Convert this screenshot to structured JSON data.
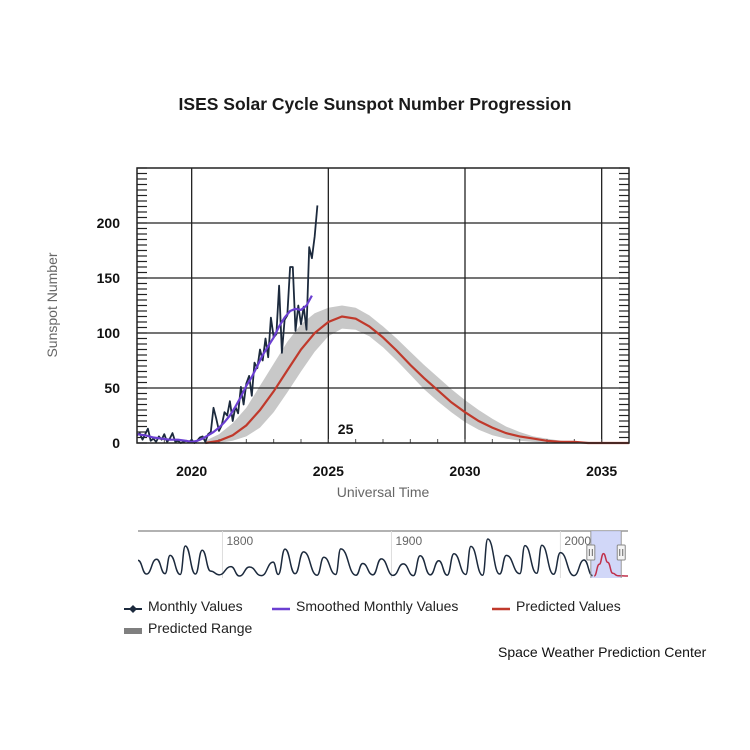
{
  "page": {
    "credit": "Space Weather Prediction Center"
  },
  "chart_data": {
    "type": "line",
    "title": "ISES Solar Cycle Sunspot Number Progression",
    "xlabel": "Universal Time",
    "ylabel": "Sunspot Number",
    "xlim": [
      2018.0,
      2036.0
    ],
    "ylim": [
      0,
      240
    ],
    "x_ticks": [
      2020,
      2025,
      2030,
      2035
    ],
    "y_ticks": [
      0,
      50,
      100,
      150,
      200
    ],
    "grid": true,
    "annotation": {
      "text": "25",
      "x": 2025.2,
      "y": 10
    },
    "legend_position": "bottom",
    "series": [
      {
        "name": "Monthly Values",
        "color": "#1c2a3d",
        "marker": "diamond",
        "x": [
          2018.0,
          2018.1,
          2018.2,
          2018.3,
          2018.4,
          2018.5,
          2018.6,
          2018.7,
          2018.8,
          2018.9,
          2019.0,
          2019.1,
          2019.2,
          2019.3,
          2019.4,
          2019.5,
          2019.6,
          2019.7,
          2019.8,
          2019.9,
          2020.0,
          2020.1,
          2020.2,
          2020.3,
          2020.4,
          2020.5,
          2020.6,
          2020.7,
          2020.8,
          2020.9,
          2021.0,
          2021.1,
          2021.2,
          2021.3,
          2021.4,
          2021.5,
          2021.6,
          2021.7,
          2021.8,
          2021.9,
          2022.0,
          2022.1,
          2022.2,
          2022.3,
          2022.4,
          2022.5,
          2022.6,
          2022.7,
          2022.8,
          2022.9,
          2023.0,
          2023.1,
          2023.2,
          2023.3,
          2023.4,
          2023.5,
          2023.6,
          2023.7,
          2023.8,
          2023.9,
          2024.0,
          2024.1,
          2024.2,
          2024.3,
          2024.4,
          2024.5,
          2024.6
        ],
        "y": [
          7,
          9,
          3,
          8,
          13,
          2,
          4,
          1,
          6,
          3,
          8,
          1,
          4,
          9,
          1,
          2,
          0,
          1,
          2,
          1,
          3,
          0,
          2,
          5,
          6,
          1,
          8,
          10,
          32,
          22,
          11,
          16,
          28,
          25,
          38,
          20,
          33,
          27,
          51,
          35,
          54,
          61,
          43,
          73,
          68,
          85,
          75,
          95,
          78,
          114,
          96,
          99,
          143,
          82,
          112,
          116,
          160,
          160,
          102,
          125,
          108,
          124,
          103,
          178,
          168,
          188,
          216
        ]
      },
      {
        "name": "Smoothed Monthly Values",
        "color": "#6b3fd1",
        "x": [
          2018.0,
          2018.3,
          2018.6,
          2018.9,
          2019.2,
          2019.5,
          2019.8,
          2020.0,
          2020.2,
          2020.4,
          2020.6,
          2020.8,
          2021.0,
          2021.2,
          2021.4,
          2021.6,
          2021.8,
          2022.0,
          2022.2,
          2022.4,
          2022.6,
          2022.8,
          2023.0,
          2023.2,
          2023.4,
          2023.6,
          2023.8,
          2024.0,
          2024.2,
          2024.4
        ],
        "y": [
          8,
          7,
          5,
          4,
          3,
          3,
          2,
          1,
          2,
          4,
          7,
          10,
          14,
          19,
          25,
          33,
          42,
          52,
          60,
          70,
          80,
          88,
          96,
          106,
          114,
          120,
          122,
          121,
          125,
          134
        ]
      },
      {
        "name": "Predicted Values",
        "color": "#c0392b",
        "x": [
          2020.5,
          2021.0,
          2021.5,
          2022.0,
          2022.5,
          2023.0,
          2023.5,
          2024.0,
          2024.5,
          2025.0,
          2025.5,
          2026.0,
          2026.5,
          2027.0,
          2027.5,
          2028.0,
          2028.5,
          2029.0,
          2029.5,
          2030.0,
          2030.5,
          2031.0,
          2031.5,
          2032.0,
          2032.5,
          2033.0,
          2033.5,
          2034.0,
          2034.5,
          2035.0,
          2035.5,
          2036.0
        ],
        "y": [
          0,
          2,
          7,
          16,
          30,
          47,
          66,
          85,
          100,
          110,
          115,
          113,
          106,
          96,
          84,
          71,
          59,
          48,
          37,
          28,
          20,
          14,
          9,
          6,
          4,
          2,
          1,
          1,
          0,
          0,
          0,
          0
        ]
      },
      {
        "name": "Predicted Range",
        "color": "#c8c8c8",
        "type": "area",
        "x": [
          2020.5,
          2021.0,
          2021.5,
          2022.0,
          2022.5,
          2023.0,
          2023.5,
          2024.0,
          2024.5,
          2025.0,
          2025.5,
          2026.0,
          2026.5,
          2027.0,
          2027.5,
          2028.0,
          2028.5,
          2029.0,
          2029.5,
          2030.0,
          2030.5,
          2031.0,
          2031.5,
          2032.0,
          2032.5,
          2033.0,
          2033.5,
          2034.0,
          2034.5,
          2035.0,
          2035.5,
          2036.0
        ],
        "low": [
          0,
          0,
          2,
          6,
          14,
          28,
          46,
          65,
          83,
          97,
          104,
          103,
          97,
          87,
          75,
          62,
          49,
          38,
          28,
          19,
          12,
          7,
          4,
          2,
          1,
          0,
          0,
          0,
          0,
          0,
          0,
          0
        ],
        "high": [
          2,
          8,
          18,
          32,
          52,
          72,
          92,
          108,
          118,
          123,
          125,
          123,
          116,
          106,
          95,
          83,
          71,
          60,
          49,
          39,
          30,
          22,
          15,
          10,
          6,
          4,
          2,
          1,
          1,
          0,
          0,
          0
        ]
      }
    ],
    "navigator": {
      "xlim": [
        1750,
        2040
      ],
      "x_ticks": [
        1800,
        1900,
        2000
      ],
      "selection": [
        2018.0,
        2036.0
      ],
      "history_x": [
        1750,
        1755,
        1761,
        1766,
        1769,
        1775,
        1778,
        1784,
        1788,
        1793,
        1798,
        1805,
        1810,
        1816,
        1823,
        1830,
        1833,
        1837,
        1843,
        1848,
        1856,
        1860,
        1867,
        1870,
        1879,
        1883,
        1889,
        1894,
        1901,
        1907,
        1913,
        1917,
        1923,
        1928,
        1933,
        1937,
        1944,
        1947,
        1954,
        1957,
        1964,
        1968,
        1976,
        1979,
        1986,
        1989,
        1996,
        2000,
        2008,
        2014,
        2019
      ],
      "history_y": [
        80,
        10,
        86,
        12,
        106,
        8,
        154,
        10,
        132,
        25,
        6,
        48,
        0,
        46,
        2,
        71,
        8,
        138,
        12,
        124,
        4,
        96,
        8,
        139,
        4,
        64,
        6,
        88,
        3,
        62,
        2,
        104,
        6,
        78,
        4,
        114,
        8,
        152,
        4,
        190,
        10,
        106,
        12,
        156,
        14,
        158,
        9,
        120,
        2,
        82,
        2
      ],
      "predicted_x": [
        2020,
        2023,
        2025.5,
        2028,
        2031,
        2034,
        2040
      ],
      "predicted_y": [
        0,
        60,
        115,
        70,
        14,
        1,
        0
      ]
    }
  }
}
